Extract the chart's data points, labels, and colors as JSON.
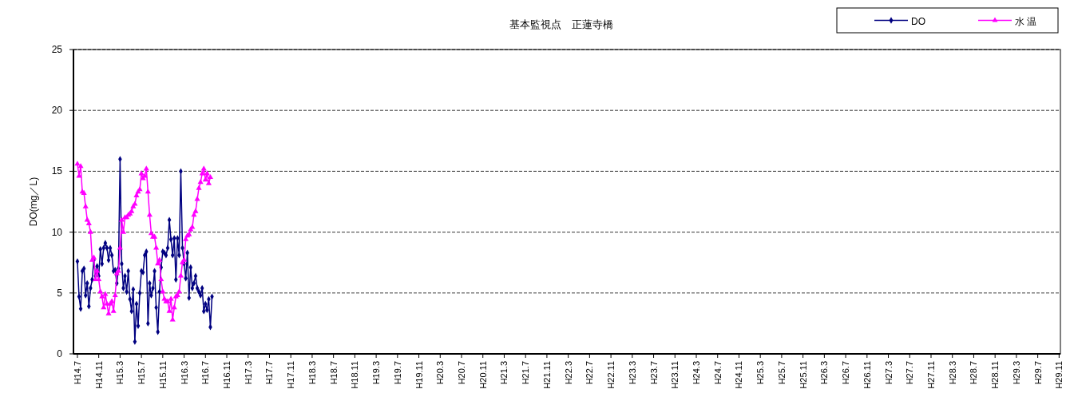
{
  "chart_data": {
    "type": "line",
    "title": "基本監視点　正蓮寺橋",
    "ylabel": "DO(mg／L)",
    "legend": "top right",
    "grid": "y",
    "line_style": "solid",
    "ylim": [
      0,
      25
    ],
    "yticks": [
      0,
      5,
      10,
      15,
      20,
      25
    ],
    "categories": [
      "H14.7",
      null,
      null,
      null,
      null,
      null,
      null,
      null,
      null,
      null,
      null,
      null,
      null,
      "H14.11",
      null,
      null,
      null,
      null,
      null,
      null,
      null,
      null,
      null,
      null,
      null,
      null,
      "H15.3",
      null,
      null,
      null,
      null,
      null,
      null,
      null,
      null,
      null,
      null,
      null,
      null,
      "H15.7",
      null,
      null,
      null,
      null,
      null,
      null,
      null,
      null,
      null,
      null,
      null,
      null,
      "H15.11",
      null,
      null,
      null,
      null,
      null,
      null,
      null,
      null,
      null,
      null,
      null,
      null,
      "H16.3",
      null,
      null,
      null,
      null,
      null,
      null,
      null,
      null,
      null,
      null,
      null,
      null,
      "H16.7",
      null,
      null,
      null,
      null,
      null,
      null,
      null,
      null,
      null,
      null,
      null,
      null,
      "H16.11",
      null,
      null,
      null,
      null,
      null,
      null,
      null,
      null,
      null,
      null,
      null,
      null,
      "H17.3",
      null,
      null,
      null,
      null,
      null,
      null,
      null,
      null,
      null,
      null,
      null,
      null,
      "H17.7",
      null,
      null,
      null,
      null,
      null,
      null,
      null,
      null,
      null,
      null,
      null,
      null,
      "H17.11",
      null,
      null,
      null,
      null,
      null,
      null,
      null,
      null,
      null,
      null,
      null,
      null,
      "H18.3",
      null,
      null,
      null,
      null,
      null,
      null,
      null,
      null,
      null,
      null,
      null,
      null,
      "H18.7",
      null,
      null,
      null,
      null,
      null,
      null,
      null,
      null,
      null,
      null,
      null,
      null,
      "H18.11",
      null,
      null,
      null,
      null,
      null,
      null,
      null,
      null,
      null,
      null,
      null,
      null,
      "H19.3",
      null,
      null,
      null,
      null,
      null,
      null,
      null,
      null,
      null,
      null,
      null,
      null,
      "H19.7",
      null,
      null,
      null,
      null,
      null,
      null,
      null,
      null,
      null,
      null,
      null,
      null,
      "H19.11",
      null,
      null,
      null,
      null,
      null,
      null,
      null,
      null,
      null,
      null,
      null,
      null,
      "H20.3",
      null,
      null,
      null,
      null,
      null,
      null,
      null,
      null,
      null,
      null,
      null,
      null,
      "H20.7",
      null,
      null,
      null,
      null,
      null,
      null,
      null,
      null,
      null,
      null,
      null,
      null,
      "H20.11",
      null,
      null,
      null,
      null,
      null,
      null,
      null,
      null,
      null,
      null,
      null,
      null,
      "H21.3",
      null,
      null,
      null,
      null,
      null,
      null,
      null,
      null,
      null,
      null,
      null,
      null,
      "H21.7",
      null,
      null,
      null,
      null,
      null,
      null,
      null,
      null,
      null,
      null,
      null,
      null,
      "H21.11",
      null,
      null,
      null,
      null,
      null,
      null,
      null,
      null,
      null,
      null,
      null,
      null,
      "H22.3",
      null,
      null,
      null,
      null,
      null,
      null,
      null,
      null,
      null,
      null,
      null,
      null,
      "H22.7",
      null,
      null,
      null,
      null,
      null,
      null,
      null,
      null,
      null,
      null,
      null,
      null,
      "H22.11",
      null,
      null,
      null,
      null,
      null,
      null,
      null,
      null,
      null,
      null,
      null,
      null,
      "H23.3",
      null,
      null,
      null,
      null,
      null,
      null,
      null,
      null,
      null,
      null,
      null,
      null,
      "H23.7",
      null,
      null,
      null,
      null,
      null,
      null,
      null,
      null,
      null,
      null,
      null,
      null,
      "H23.11",
      null,
      null,
      null,
      null,
      null,
      null,
      null,
      null,
      null,
      null,
      null,
      null,
      "H24.3",
      null,
      null,
      null,
      null,
      null,
      null,
      null,
      null,
      null,
      null,
      null,
      null,
      "H24.7",
      null,
      null,
      null,
      null,
      null,
      null,
      null,
      null,
      null,
      null,
      null,
      null,
      "H24.11",
      null,
      null,
      null,
      null,
      null,
      null,
      null,
      null,
      null,
      null,
      null,
      null,
      "H25.3",
      null,
      null,
      null,
      null,
      null,
      null,
      null,
      null,
      null,
      null,
      null,
      null,
      "H25.7",
      null,
      null,
      null,
      null,
      null,
      null,
      null,
      null,
      null,
      null,
      null,
      null,
      "H25.11",
      null,
      null,
      null,
      null,
      null,
      null,
      null,
      null,
      null,
      null,
      null,
      null,
      "H26.3",
      null,
      null,
      null,
      null,
      null,
      null,
      null,
      null,
      null,
      null,
      null,
      null,
      "H26.7",
      null,
      null,
      null,
      null,
      null,
      null,
      null,
      null,
      null,
      null,
      null,
      null,
      "H26.11",
      null,
      null,
      null,
      null,
      null,
      null,
      null,
      null,
      null,
      null,
      null,
      null,
      "H27.3",
      null,
      null,
      null,
      null,
      null,
      null,
      null,
      null,
      null,
      null,
      null,
      null,
      "H27.7",
      null,
      null,
      null,
      null,
      null,
      null,
      null,
      null,
      null,
      null,
      null,
      null,
      "H27.11",
      null,
      null,
      null,
      null,
      null,
      null,
      null,
      null,
      null,
      null,
      null,
      null,
      "H28.3",
      null,
      null,
      null,
      null,
      null,
      null,
      null,
      null,
      null,
      null,
      null,
      null,
      "H28.7",
      null,
      null,
      null,
      null,
      null,
      null,
      null,
      null,
      null,
      null,
      null,
      null,
      "H28.11",
      null,
      null,
      null,
      null,
      null,
      null,
      null,
      null,
      null,
      null,
      null,
      null,
      "H29.3",
      null,
      null,
      null,
      null,
      null,
      null,
      null,
      null,
      null,
      null,
      null,
      null,
      "H29.7",
      null,
      null,
      null,
      null,
      null,
      null,
      null,
      null,
      null,
      null,
      null,
      null,
      "H29.11"
    ],
    "series": [
      {
        "name": "DO",
        "color": "#000080",
        "marker": "diamond",
        "values": [
          7.6,
          4.7,
          3.7,
          6.8,
          7.0,
          4.8,
          5.8,
          3.9,
          5.4,
          6.1,
          7.7,
          6.4,
          7.2,
          6.4,
          8.6,
          7.4,
          8.7,
          9.1,
          8.7,
          7.7,
          8.7,
          8.1,
          6.8,
          6.9,
          5.8,
          7.0,
          16.0,
          7.4,
          5.4,
          6.4,
          5.1,
          6.8,
          4.5,
          3.5,
          5.3,
          1.0,
          4.1,
          2.3,
          5.0,
          6.8,
          6.7,
          8.1,
          8.4,
          2.5,
          5.8,
          4.8,
          5.4,
          6.8,
          3.8,
          1.8,
          5.1,
          7.1,
          8.4,
          8.3,
          8.1,
          8.7,
          11.0,
          9.4,
          8.1,
          9.5,
          6.1,
          9.5,
          8.1,
          15.0,
          8.7,
          7.4,
          6.2,
          8.3,
          4.6,
          7.1,
          5.4,
          5.8,
          6.4,
          5.4,
          5.1,
          4.8,
          5.4,
          3.5,
          4.1,
          3.6,
          4.5,
          2.2,
          4.7,
          null,
          null,
          null,
          null,
          null,
          null,
          null,
          null,
          null,
          null,
          null,
          null,
          null,
          null,
          null,
          null,
          null,
          null,
          null,
          null,
          null,
          null,
          null,
          null,
          null,
          null,
          null,
          null,
          null,
          null,
          null,
          null,
          null,
          null,
          null,
          null,
          null,
          null,
          null,
          null,
          null,
          null,
          null,
          null,
          null,
          null,
          null,
          null,
          null,
          null,
          null,
          null,
          null,
          null,
          null,
          null,
          null,
          null,
          null,
          null,
          null,
          null,
          null,
          null,
          null,
          null,
          null,
          null,
          null,
          null,
          null,
          null,
          null,
          null,
          null,
          null,
          null,
          null,
          null,
          null,
          null,
          null,
          null,
          null,
          null,
          null,
          null,
          null,
          null,
          null,
          null,
          null,
          null,
          null,
          null,
          null,
          null,
          null,
          null,
          null,
          null,
          null,
          null,
          null,
          null,
          null,
          null,
          null,
          null,
          null,
          null,
          null,
          null,
          null,
          null,
          null,
          null,
          null,
          null,
          null,
          null,
          null,
          null,
          null,
          null,
          null,
          null,
          null,
          null,
          null,
          null,
          null,
          null,
          null,
          null,
          null,
          null,
          null,
          null,
          null,
          null,
          null,
          null,
          null,
          null,
          null,
          null,
          null,
          null,
          null,
          null,
          null,
          null,
          null,
          null,
          null,
          null,
          null,
          null,
          null,
          null,
          null,
          null,
          null,
          null,
          null,
          null,
          null,
          null,
          null,
          null,
          null,
          null,
          null,
          null,
          null,
          null,
          null,
          null,
          null,
          null,
          null,
          null,
          null,
          null,
          null,
          null,
          null,
          null,
          null,
          null,
          null,
          null,
          null,
          null,
          null,
          null,
          null,
          null,
          null,
          null,
          null,
          null,
          null,
          null,
          null,
          null,
          null,
          null,
          null,
          null,
          null,
          null,
          null,
          null,
          null,
          null,
          null,
          null,
          null,
          null,
          null,
          null,
          null,
          null,
          null,
          null,
          null,
          null,
          null,
          null,
          null,
          null,
          null,
          null,
          null,
          null,
          null,
          null,
          null,
          null,
          null,
          null,
          null,
          null,
          null,
          null,
          null,
          null,
          null,
          null,
          null,
          null,
          null,
          null,
          null,
          null,
          null,
          null,
          null,
          null,
          null,
          null,
          null,
          null,
          null,
          null,
          null,
          null,
          null,
          null,
          null,
          null,
          null,
          null,
          null,
          null,
          null,
          null,
          null,
          null,
          null,
          null,
          null,
          null,
          null,
          null,
          null,
          null,
          null,
          null,
          null,
          null,
          null,
          null,
          null,
          null,
          null,
          null,
          null,
          null,
          null,
          null,
          null,
          null,
          null,
          null,
          null,
          null,
          null,
          null,
          null,
          null,
          null,
          null,
          null,
          null,
          null,
          null,
          null,
          null,
          null,
          null,
          null,
          null,
          null,
          null,
          null,
          null,
          null,
          null,
          null,
          null,
          null,
          null,
          null,
          null,
          null,
          null,
          null,
          null,
          null,
          null,
          null,
          null,
          null,
          null,
          null,
          null,
          null,
          null,
          null,
          null,
          null,
          null,
          null,
          null,
          null,
          null,
          null,
          null,
          null,
          null,
          null,
          null,
          null,
          null,
          null,
          null,
          null,
          null,
          null,
          null,
          null,
          null,
          null,
          null,
          null,
          null,
          null,
          null,
          null,
          null,
          null,
          null,
          null,
          null,
          null,
          null,
          null,
          null,
          null,
          null,
          null,
          null,
          null,
          null,
          null,
          null,
          null,
          null,
          null,
          null,
          null,
          null,
          null,
          null,
          null,
          null,
          null,
          null,
          null,
          null,
          null,
          null,
          null,
          null,
          null,
          null,
          null,
          null,
          null,
          null,
          null,
          null,
          null,
          null,
          null,
          null,
          null,
          null,
          null,
          null,
          null,
          null,
          null,
          null,
          null,
          null,
          null,
          null,
          null,
          null,
          null,
          null,
          null,
          null,
          null,
          null,
          null,
          null,
          null,
          null,
          null,
          null,
          null,
          null,
          null,
          null,
          null,
          null,
          null,
          null,
          null,
          null,
          null,
          null,
          null,
          null,
          null,
          null,
          null,
          null,
          null,
          null,
          null,
          null,
          null,
          null,
          null,
          null,
          null,
          null,
          null,
          null,
          null,
          null,
          null,
          null,
          null,
          null,
          null,
          null,
          null,
          null,
          null,
          null,
          null,
          null,
          null,
          null,
          null,
          null,
          null,
          null,
          null,
          null,
          null,
          null,
          null,
          null,
          null,
          null,
          null,
          null,
          null
        ]
      },
      {
        "name": "水 温",
        "color": "#ff00ff",
        "marker": "triangle",
        "values": [
          15.6,
          14.6,
          15.4,
          13.3,
          13.2,
          12.1,
          11.0,
          10.7,
          10.0,
          7.7,
          7.9,
          6.1,
          6.8,
          6.1,
          5.1,
          4.7,
          3.8,
          4.9,
          4.1,
          3.3,
          4.1,
          4.3,
          3.5,
          4.8,
          6.6,
          6.8,
          8.7,
          11.0,
          10.0,
          11.2,
          11.2,
          11.4,
          11.5,
          11.7,
          12.1,
          12.3,
          13.0,
          13.3,
          13.5,
          14.8,
          14.4,
          14.6,
          15.2,
          13.3,
          11.4,
          9.9,
          9.6,
          9.6,
          8.7,
          7.4,
          7.7,
          6.1,
          5.1,
          4.5,
          4.3,
          4.3,
          3.5,
          4.5,
          2.8,
          3.8,
          4.7,
          4.8,
          5.1,
          6.4,
          7.5,
          7.7,
          9.4,
          9.7,
          9.8,
          10.2,
          10.4,
          11.4,
          11.7,
          12.7,
          13.6,
          14.1,
          14.8,
          15.2,
          14.3,
          14.8,
          14.0,
          14.5,
          null,
          null,
          null,
          null,
          null,
          null,
          null,
          null,
          null,
          null,
          null,
          null,
          null,
          null,
          null,
          null,
          null,
          null,
          null,
          null,
          null,
          null,
          null,
          null,
          null,
          null,
          null,
          null,
          null,
          null,
          null,
          null,
          null,
          null,
          null,
          null,
          null,
          null,
          null,
          null,
          null,
          null,
          null,
          null,
          null,
          null,
          null,
          null,
          null,
          null,
          null,
          null,
          null,
          null,
          null,
          null,
          null,
          null,
          null,
          null,
          null,
          null,
          null,
          null,
          null,
          null,
          null,
          null,
          null,
          null,
          null,
          null,
          null,
          null,
          null,
          null,
          null,
          null,
          null,
          null,
          null,
          null,
          null,
          null,
          null,
          null,
          null,
          null,
          null,
          null,
          null,
          null,
          null,
          null,
          null,
          null,
          null,
          null,
          null,
          null,
          null,
          null,
          null,
          null,
          null,
          null,
          null,
          null,
          null,
          null,
          null,
          null,
          null,
          null,
          null,
          null,
          null,
          null,
          null,
          null,
          null,
          null,
          null,
          null,
          null,
          null,
          null,
          null,
          null,
          null,
          null,
          null,
          null,
          null,
          null,
          null,
          null,
          null,
          null,
          null,
          null,
          null,
          null,
          null,
          null,
          null,
          null,
          null,
          null,
          null,
          null,
          null,
          null,
          null,
          null,
          null,
          null,
          null,
          null,
          null,
          null,
          null,
          null,
          null,
          null,
          null,
          null,
          null,
          null,
          null,
          null,
          null,
          null,
          null,
          null,
          null,
          null,
          null,
          null,
          null,
          null,
          null,
          null,
          null,
          null,
          null,
          null,
          null,
          null,
          null,
          null,
          null,
          null,
          null,
          null,
          null,
          null,
          null,
          null,
          null,
          null,
          null,
          null,
          null,
          null,
          null,
          null,
          null,
          null,
          null,
          null,
          null,
          null,
          null,
          null,
          null,
          null,
          null,
          null,
          null,
          null,
          null,
          null,
          null,
          null,
          null,
          null,
          null,
          null,
          null,
          null,
          null,
          null,
          null,
          null,
          null,
          null,
          null,
          null,
          null,
          null,
          null,
          null,
          null,
          null,
          null,
          null,
          null,
          null,
          null,
          null,
          null,
          null,
          null,
          null,
          null,
          null,
          null,
          null,
          null,
          null,
          null,
          null,
          null,
          null,
          null,
          null,
          null,
          null,
          null,
          null,
          null,
          null,
          null,
          null,
          null,
          null,
          null,
          null,
          null,
          null,
          null,
          null,
          null,
          null,
          null,
          null,
          null,
          null,
          null,
          null,
          null,
          null,
          null,
          null,
          null,
          null,
          null,
          null,
          null,
          null,
          null,
          null,
          null,
          null,
          null,
          null,
          null,
          null,
          null,
          null,
          null,
          null,
          null,
          null,
          null,
          null,
          null,
          null,
          null,
          null,
          null,
          null,
          null,
          null,
          null,
          null,
          null,
          null,
          null,
          null,
          null,
          null,
          null,
          null,
          null,
          null,
          null,
          null,
          null,
          null,
          null,
          null,
          null,
          null,
          null,
          null,
          null,
          null,
          null,
          null,
          null,
          null,
          null,
          null,
          null,
          null,
          null,
          null,
          null,
          null,
          null,
          null,
          null,
          null,
          null,
          null,
          null,
          null,
          null,
          null,
          null,
          null,
          null,
          null,
          null,
          null,
          null,
          null,
          null,
          null,
          null,
          null,
          null,
          null,
          null,
          null,
          null,
          null,
          null,
          null,
          null,
          null,
          null,
          null,
          null,
          null,
          null,
          null,
          null,
          null,
          null,
          null,
          null,
          null,
          null,
          null,
          null,
          null,
          null,
          null,
          null,
          null,
          null,
          null,
          null,
          null,
          null,
          null,
          null,
          null,
          null,
          null,
          null,
          null,
          null,
          null,
          null,
          null,
          null,
          null,
          null,
          null,
          null,
          null,
          null,
          null,
          null,
          null,
          null,
          null,
          null,
          null,
          null,
          null,
          null,
          null,
          null,
          null,
          null,
          null,
          null,
          null,
          null,
          null,
          null,
          null,
          null,
          null,
          null,
          null,
          null,
          null,
          null,
          null,
          null,
          null,
          null,
          null,
          null,
          null,
          null,
          null,
          null,
          null,
          null,
          null,
          null,
          null,
          null,
          null,
          null,
          null,
          null,
          null,
          null,
          null,
          null,
          null,
          null,
          null,
          null,
          null,
          null,
          null,
          null,
          null,
          null,
          null,
          null,
          null,
          null,
          null,
          null,
          null,
          null,
          null,
          null,
          null,
          null,
          null,
          null,
          null,
          null,
          null,
          null,
          null
        ]
      }
    ]
  }
}
